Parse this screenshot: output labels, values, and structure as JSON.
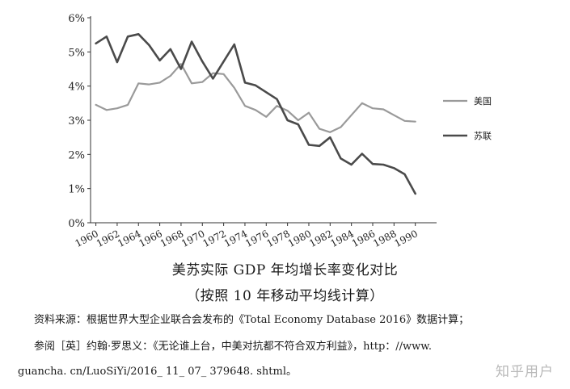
{
  "chart_data": {
    "type": "line",
    "title": "美苏实际 GDP 年均增长率变化对比",
    "subtitle": "（按照 10 年移动平均线计算）",
    "xlabel": "",
    "ylabel": "",
    "x": [
      1960,
      1961,
      1962,
      1963,
      1964,
      1965,
      1966,
      1967,
      1968,
      1969,
      1970,
      1971,
      1972,
      1973,
      1974,
      1975,
      1976,
      1977,
      1978,
      1979,
      1980,
      1981,
      1982,
      1983,
      1984,
      1985,
      1986,
      1987,
      1988,
      1989,
      1990,
      1991
    ],
    "xticks": [
      1960,
      1962,
      1964,
      1966,
      1968,
      1970,
      1972,
      1974,
      1976,
      1978,
      1980,
      1982,
      1984,
      1986,
      1988,
      1990
    ],
    "xtick_labels": [
      "1960",
      "1962",
      "1964",
      "1966",
      "1968",
      "1970",
      "1972",
      "1974",
      "1976",
      "1978",
      "1980",
      "1982",
      "1984",
      "1986",
      "1988",
      "1990"
    ],
    "xlim": [
      1959.5,
      1992
    ],
    "ylim": [
      0,
      6
    ],
    "yticks": [
      0,
      1,
      2,
      3,
      4,
      5,
      6
    ],
    "ytick_labels": [
      "0%",
      "1%",
      "2%",
      "3%",
      "4%",
      "5%",
      "6%"
    ],
    "grid": false,
    "legend": "right",
    "series": [
      {
        "name": "美国",
        "color": "#9a9a9a",
        "values": [
          3.45,
          3.3,
          3.35,
          3.45,
          4.08,
          4.05,
          4.1,
          4.3,
          4.65,
          4.08,
          4.12,
          4.38,
          4.35,
          3.95,
          3.42,
          3.3,
          3.1,
          3.42,
          3.28,
          3.0,
          3.22,
          2.75,
          2.65,
          2.8,
          3.15,
          3.5,
          3.35,
          3.32,
          3.15,
          2.98,
          2.96,
          null
        ]
      },
      {
        "name": "苏联",
        "color": "#4a4a4a",
        "values": [
          5.25,
          5.45,
          4.7,
          5.45,
          5.52,
          5.2,
          4.75,
          5.08,
          4.5,
          5.3,
          4.72,
          4.22,
          4.72,
          5.22,
          4.1,
          4.02,
          3.82,
          3.62,
          3.0,
          2.88,
          2.28,
          2.25,
          2.5,
          1.88,
          1.7,
          2.02,
          1.72,
          1.7,
          1.6,
          1.42,
          0.85,
          null
        ]
      }
    ]
  },
  "caption": {
    "title": "美苏实际 GDP 年均增长率变化对比",
    "subtitle": "（按照 10 年移动平均线计算）"
  },
  "source": {
    "line1": "资料来源：根据世界大型企业联合会发布的《Total Economy Database 2016》数据计算；",
    "line2": "参阅［英］约翰·罗思义：《无论谁上台，中美对抗都不符合双方利益》，http：//www.",
    "line3": "guancha. cn/LuoSiYi/2016_ 11_ 07_ 379648. shtml。"
  },
  "watermark": "知乎用户"
}
